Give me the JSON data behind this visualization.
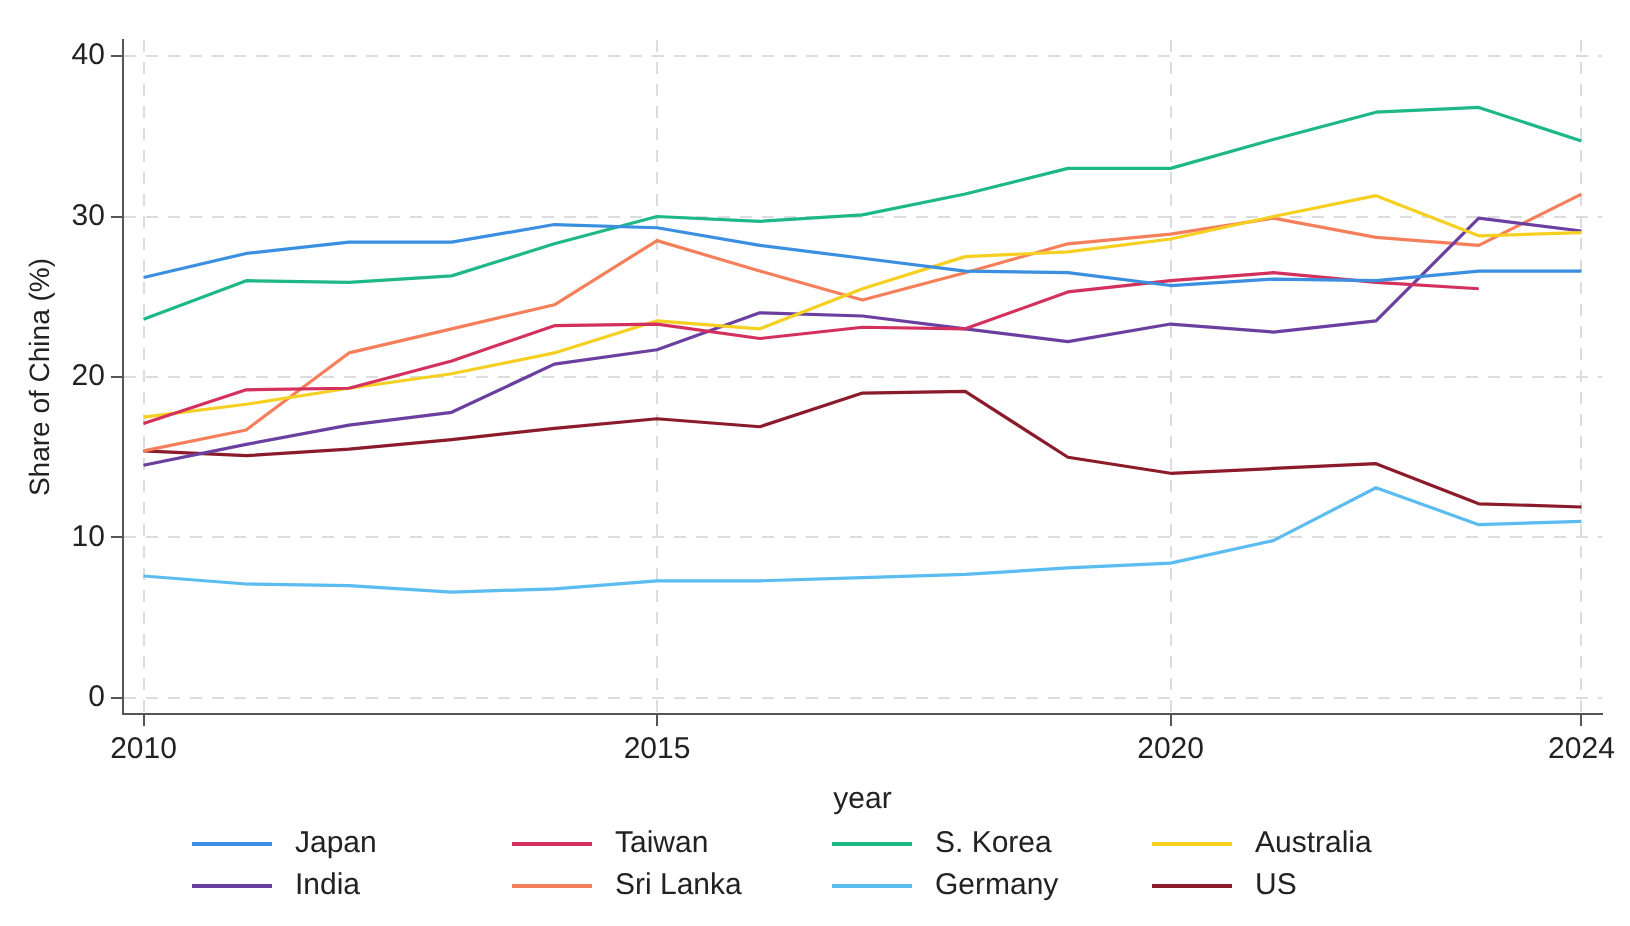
{
  "chart_data": {
    "type": "line",
    "xlabel": "year",
    "ylabel": "Share of China (%)",
    "x": [
      2010,
      2011,
      2012,
      2013,
      2014,
      2015,
      2016,
      2017,
      2018,
      2019,
      2020,
      2021,
      2022,
      2023,
      2024
    ],
    "series": [
      {
        "name": "Japan",
        "color": "#3b8fe0",
        "values": [
          26.2,
          27.7,
          28.4,
          28.4,
          29.5,
          29.3,
          28.2,
          27.4,
          26.6,
          26.5,
          25.7,
          26.1,
          26.0,
          26.6,
          26.6
        ]
      },
      {
        "name": "Taiwan",
        "color": "#d4305e",
        "values": [
          17.1,
          19.2,
          19.3,
          21.0,
          23.2,
          23.3,
          22.4,
          23.1,
          23.0,
          25.3,
          26.0,
          26.5,
          25.9,
          25.5,
          null
        ]
      },
      {
        "name": "S. Korea",
        "color": "#1db886",
        "values": [
          23.6,
          26.0,
          25.9,
          26.3,
          28.3,
          30.0,
          29.7,
          30.1,
          31.4,
          33.0,
          33.0,
          34.8,
          36.5,
          36.8,
          34.7
        ]
      },
      {
        "name": "Australia",
        "color": "#f5d020",
        "values": [
          17.5,
          18.3,
          19.3,
          20.2,
          21.5,
          23.5,
          23.0,
          25.5,
          27.5,
          27.8,
          28.6,
          30.0,
          31.3,
          28.8,
          29.0
        ]
      },
      {
        "name": "India",
        "color": "#6a3fa0",
        "values": [
          14.5,
          15.8,
          17.0,
          17.8,
          20.8,
          21.7,
          24.0,
          23.8,
          23.0,
          22.2,
          23.3,
          22.8,
          23.5,
          29.9,
          29.1
        ]
      },
      {
        "name": "Sri Lanka",
        "color": "#f57f5b",
        "values": [
          15.4,
          16.7,
          21.5,
          23.0,
          24.5,
          28.5,
          26.6,
          24.8,
          26.5,
          28.3,
          28.9,
          29.9,
          28.7,
          28.2,
          31.4
        ]
      },
      {
        "name": "Germany",
        "color": "#5bbcf0",
        "values": [
          7.6,
          7.1,
          7.0,
          6.6,
          6.8,
          7.3,
          7.3,
          7.5,
          7.7,
          8.1,
          8.4,
          9.8,
          13.1,
          10.8,
          11.0
        ]
      },
      {
        "name": "US",
        "color": "#8b1a2a",
        "values": [
          15.4,
          15.1,
          15.5,
          16.1,
          16.8,
          17.4,
          16.9,
          19.0,
          19.1,
          15.0,
          14.0,
          14.3,
          14.6,
          12.1,
          11.9
        ]
      }
    ],
    "xlim": [
      2009.8,
      2024.2
    ],
    "xticks": [
      2010,
      2015,
      2020,
      2024
    ],
    "ylim": [
      -1,
      41
    ],
    "yticks": [
      0,
      10,
      20,
      30,
      40
    ],
    "grid": true,
    "legend": "bottom",
    "marker": "none",
    "line_style": "solid"
  }
}
